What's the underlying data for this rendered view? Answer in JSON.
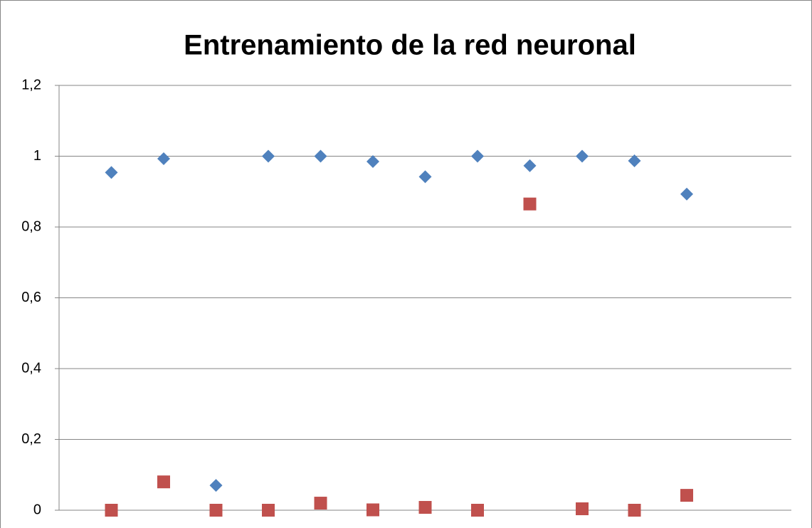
{
  "chart_data": {
    "type": "scatter",
    "title": "Entrenamiento de la red neuronal",
    "x": [
      1,
      2,
      3,
      4,
      5,
      6,
      7,
      8,
      9,
      10,
      11,
      12
    ],
    "xlim": [
      0,
      14
    ],
    "series": [
      {
        "color": "#4f81bd",
        "marker": "diamond",
        "values": [
          0.954,
          0.993,
          0.07,
          1.0,
          1.0,
          0.985,
          0.942,
          1.0,
          0.973,
          1.0,
          0.987,
          0.893
        ]
      },
      {
        "color": "#c0504d",
        "marker": "square",
        "values": [
          0.0,
          0.08,
          0.0,
          0.0,
          0.02,
          0.001,
          0.008,
          0.0,
          0.865,
          0.004,
          0.0,
          0.042
        ]
      }
    ],
    "ylim": [
      0,
      1.2
    ],
    "yticks": [
      0,
      {
        "value": 0.2,
        "label": "0,2"
      },
      {
        "value": 0.4,
        "label": "0,4"
      },
      {
        "value": 0.6,
        "label": "0,6"
      },
      {
        "value": 0.8,
        "label": "0,8"
      },
      1,
      {
        "value": 1.2,
        "label": "1,2"
      }
    ],
    "grid": true
  }
}
